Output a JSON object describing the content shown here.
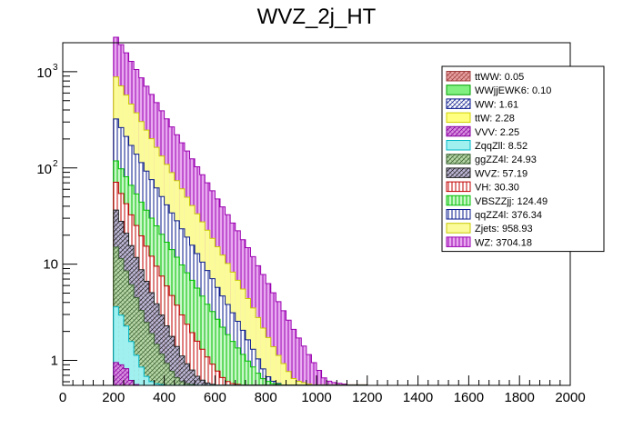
{
  "chart_data": {
    "type": "bar",
    "subtype": "stacked-histogram",
    "title": "WVZ_2j_HT",
    "xlabel": "",
    "ylabel": "",
    "xlim": [
      0,
      2000
    ],
    "ylim": [
      0.55,
      2000
    ],
    "ylog": true,
    "bin_width": 20,
    "x_start": 200,
    "x_ticks": [
      "0",
      "200",
      "400",
      "600",
      "800",
      "1000",
      "1200",
      "1400",
      "1600",
      "1800",
      "2000"
    ],
    "x_tick_values": [
      0,
      200,
      400,
      600,
      800,
      1000,
      1200,
      1400,
      1600,
      1800,
      2000
    ],
    "y_ticks": [
      {
        "value": 1,
        "label": "1"
      },
      {
        "value": 10,
        "label": "10"
      },
      {
        "value": 100,
        "base": "10",
        "exp": "2"
      },
      {
        "value": 1000,
        "base": "10",
        "exp": "3"
      }
    ],
    "legend_position": "top-right",
    "series": [
      {
        "name": "WZ",
        "legend": "WZ: 3704.18",
        "fill": "#e8a8f0",
        "stroke": "#9a00b0",
        "pattern": "vert",
        "values": [
          1400,
          1200,
          1000,
          820,
          680,
          560,
          460,
          380,
          315,
          260,
          215,
          178,
          148,
          122,
          101,
          84,
          70,
          58,
          48,
          40,
          33,
          27.5,
          23,
          19,
          16,
          13,
          11,
          9,
          7.4,
          6.2,
          5.1,
          4.2,
          3.5,
          2.9,
          2.4,
          2.0,
          1.65,
          1.37,
          1.13,
          0.94,
          0.78,
          0.65,
          0.6,
          0.58,
          0.57,
          0.56,
          0.55,
          0.55,
          0.55,
          0.55
        ]
      },
      {
        "name": "Zjets",
        "legend": "Zjets: 958.93",
        "fill": "#fbfb9a",
        "stroke": "#c8c800",
        "pattern": "solid",
        "values": [
          560,
          450,
          360,
          290,
          235,
          190,
          155,
          126,
          102,
          83,
          68,
          56,
          46,
          38,
          31,
          25.5,
          21,
          17.5,
          14.5,
          12,
          10,
          8.3,
          6.9,
          5.7,
          4.8,
          4.0,
          3.3,
          2.75,
          2.3,
          1.9,
          1.6,
          1.33,
          1.1,
          0.92,
          0.76,
          0.64,
          0.6,
          0.58,
          0.56,
          0.55,
          0.55,
          0.55,
          0.55,
          0.55,
          0.55,
          0.55,
          0.55,
          0.55,
          0.55,
          0.55
        ]
      },
      {
        "name": "qqZZ4l",
        "legend": "qqZZ4l: 376.34",
        "fill": "#ffffff",
        "stroke": "#0a1a8c",
        "pattern": "vert",
        "values": [
          205,
          165,
          132,
          106,
          86,
          70,
          57,
          46,
          37.5,
          30.5,
          25,
          20.5,
          17,
          14,
          11.5,
          9.5,
          7.8,
          6.4,
          5.3,
          4.4,
          3.6,
          3.0,
          2.5,
          2.1,
          1.75,
          1.45,
          1.2,
          1.0,
          0.85,
          0.72,
          0.62,
          0.58,
          0.56,
          0.55,
          0.55,
          0.55,
          0.55,
          0.55,
          0.55,
          0.55,
          0.55,
          0.55,
          0.55,
          0.55,
          0.55,
          0.55,
          0.55,
          0.55,
          0.55,
          0.55
        ]
      },
      {
        "name": "VBSZZjj",
        "legend": "VBSZZjj: 124.49",
        "fill": "#c8f8c8",
        "stroke": "#00c000",
        "pattern": "vert",
        "values": [
          48,
          44,
          39,
          34,
          29,
          25,
          21.5,
          18.5,
          16,
          13.5,
          11.5,
          10,
          8.6,
          7.4,
          6.3,
          5.4,
          4.6,
          3.9,
          3.3,
          2.85,
          2.45,
          2.1,
          1.8,
          1.55,
          1.33,
          1.15,
          0.98,
          0.85,
          0.73,
          0.64,
          0.6,
          0.57,
          0.56,
          0.55,
          0.55,
          0.55,
          0.55,
          0.55,
          0.55,
          0.55,
          0.55,
          0.55,
          0.55,
          0.55,
          0.55,
          0.55,
          0.55,
          0.55,
          0.55,
          0.55
        ]
      },
      {
        "name": "VH",
        "legend": "VH: 30.30",
        "fill": "#ffffff",
        "stroke": "#c00000",
        "pattern": "vert",
        "values": [
          35,
          27,
          22,
          17.5,
          14,
          11.5,
          9.3,
          7.6,
          6.2,
          5.1,
          4.2,
          3.5,
          2.9,
          2.4,
          2.0,
          1.7,
          1.45,
          1.23,
          1.05,
          0.9,
          0.77,
          0.66,
          0.6,
          0.57,
          0.56,
          0.55,
          0.55,
          0.55,
          0.55,
          0.55,
          0.55,
          0.55,
          0.55,
          0.55,
          0.55,
          0.55,
          0.55,
          0.55,
          0.55,
          0.55,
          0.55,
          0.55,
          0.55,
          0.55,
          0.55,
          0.55,
          0.55,
          0.55,
          0.55,
          0.55
        ]
      },
      {
        "name": "WVZ",
        "legend": "WVZ: 57.19",
        "fill": "#c0b8d8",
        "stroke": "#202020",
        "pattern": "hatch",
        "values": [
          22,
          17,
          13,
          10,
          7.8,
          6.0,
          4.7,
          3.7,
          2.95,
          2.35,
          1.9,
          1.55,
          1.28,
          1.06,
          0.9,
          0.78,
          0.68,
          0.62,
          0.58,
          0.56,
          0.55,
          0.55,
          0.55,
          0.55,
          0.55,
          0.55,
          0.55,
          0.55,
          0.55,
          0.55,
          0.55,
          0.55,
          0.55,
          0.55,
          0.55,
          0.55,
          0.55,
          0.55,
          0.55,
          0.55,
          0.55,
          0.55,
          0.55,
          0.55,
          0.55,
          0.55,
          0.55,
          0.55,
          0.55,
          0.55
        ]
      },
      {
        "name": "ggZZ4l",
        "legend": "ggZZ4l: 24.93",
        "fill": "#b8d8a8",
        "stroke": "#3a6030",
        "pattern": "hatch",
        "values": [
          12,
          9,
          6.8,
          5.1,
          3.9,
          3.0,
          2.35,
          1.85,
          1.45,
          1.15,
          0.93,
          0.77,
          0.66,
          0.6,
          0.57,
          0.56,
          0.55,
          0.55,
          0.55,
          0.55,
          0.55,
          0.55,
          0.55,
          0.55,
          0.55,
          0.55,
          0.55,
          0.55,
          0.55,
          0.55,
          0.55,
          0.55,
          0.55,
          0.55,
          0.55,
          0.55,
          0.55,
          0.55,
          0.55,
          0.55,
          0.55,
          0.55,
          0.55,
          0.55,
          0.55,
          0.55,
          0.55,
          0.55,
          0.55,
          0.55
        ]
      },
      {
        "name": "ZqqZll",
        "legend": "ZqqZll: 8.52",
        "fill": "#a0f0f0",
        "stroke": "#00b8c8",
        "pattern": "solid",
        "values": [
          3.2,
          2.6,
          2.0,
          1.5,
          1.12,
          0.85,
          0.68,
          0.6,
          0.57,
          0.56,
          0.55,
          0.55,
          0.55,
          0.55,
          0.55,
          0.55,
          0.55,
          0.55,
          0.55,
          0.55,
          0.55,
          0.55,
          0.55,
          0.55,
          0.55,
          0.55,
          0.55,
          0.55,
          0.55,
          0.55,
          0.55,
          0.55,
          0.55,
          0.55,
          0.55,
          0.55,
          0.55,
          0.55,
          0.55,
          0.55,
          0.55,
          0.55,
          0.55,
          0.55,
          0.55,
          0.55,
          0.55,
          0.55,
          0.55,
          0.55
        ]
      },
      {
        "name": "VVV",
        "legend": "VVV: 2.25",
        "fill": "#d890e0",
        "stroke": "#8a00a0",
        "pattern": "hatch",
        "values": [
          0.95,
          0.9,
          0.82,
          0.62,
          0.56,
          0.55,
          0.55,
          0.55,
          0.55,
          0.55,
          0.55,
          0.55,
          0.55,
          0.55,
          0.55,
          0.55,
          0.55,
          0.55,
          0.55,
          0.55,
          0.55,
          0.55,
          0.55,
          0.55,
          0.55,
          0.55,
          0.55,
          0.55,
          0.55,
          0.55,
          0.55,
          0.55,
          0.55,
          0.55,
          0.55,
          0.55,
          0.55,
          0.55,
          0.55,
          0.55,
          0.55,
          0.55,
          0.55,
          0.55,
          0.55,
          0.55,
          0.55,
          0.55,
          0.55,
          0.55
        ]
      },
      {
        "name": "ttW",
        "legend": "ttW: 2.28",
        "fill": "#ffff80",
        "stroke": "#d0d000",
        "pattern": "solid",
        "values": []
      },
      {
        "name": "WW",
        "legend": "WW: 1.61",
        "fill": "#ffffff",
        "stroke": "#0a1a8c",
        "pattern": "hatch",
        "values": []
      },
      {
        "name": "WWjjEWK6",
        "legend": "WWjjEWK6: 0.10",
        "fill": "#80f080",
        "stroke": "#00a000",
        "pattern": "solid",
        "values": []
      },
      {
        "name": "ttWW",
        "legend": "ttWW: 0.05",
        "fill": "#e8a0a0",
        "stroke": "#a04040",
        "pattern": "hatch",
        "values": []
      }
    ]
  }
}
